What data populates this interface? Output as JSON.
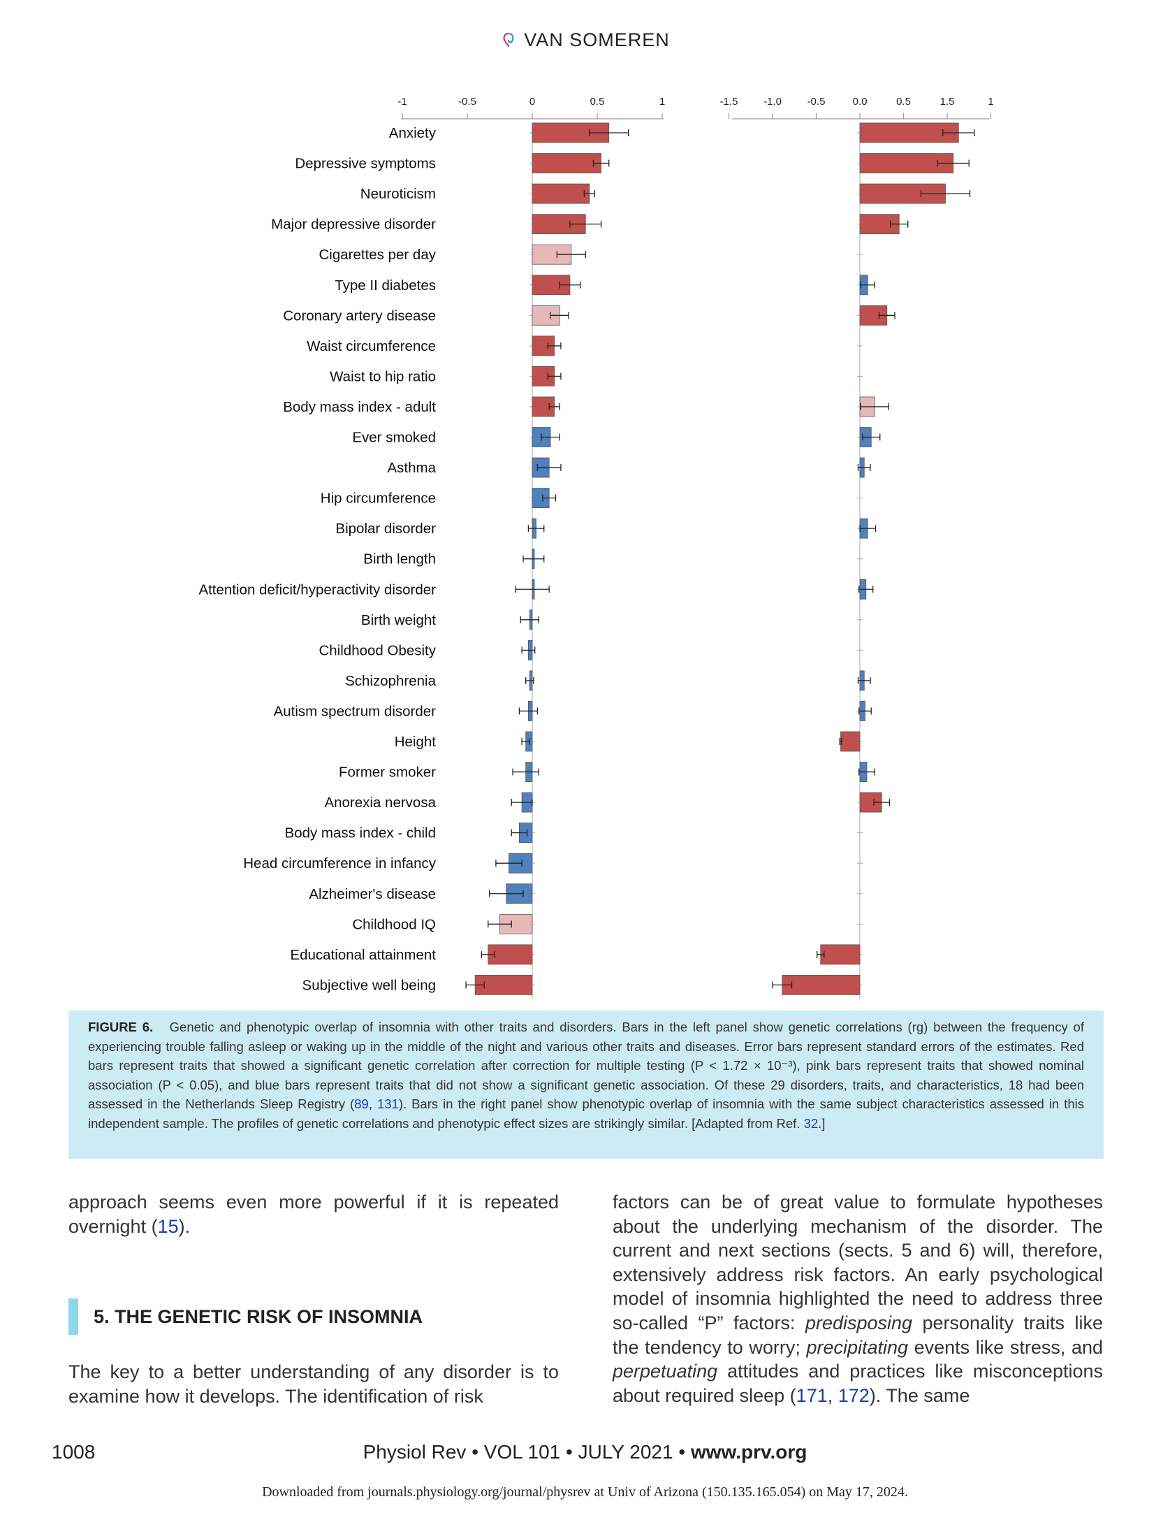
{
  "header": {
    "title": "VAN SOMEREN"
  },
  "chart_data": [
    {
      "type": "bar",
      "orientation": "horizontal",
      "panel": "left",
      "xlim": [
        -1,
        1
      ],
      "xticks": [
        "-1",
        "-0.5",
        "0",
        "0.5",
        "1"
      ],
      "categories": [
        "Anxiety",
        "Depressive symptoms",
        "Neuroticism",
        "Major depressive disorder",
        "Cigarettes per day",
        "Type II diabetes",
        "Coronary artery disease",
        "Waist circumference",
        "Waist to hip ratio",
        "Body mass index - adult",
        "Ever smoked",
        "Asthma",
        "Hip circumference",
        "Bipolar disorder",
        "Birth length",
        "Attention deficit/hyperactivity disorder",
        "Birth weight",
        "Childhood Obesity",
        "Schizophrenia",
        "Autism spectrum disorder",
        "Height",
        "Former smoker",
        "Anorexia nervosa",
        "Body mass index - child",
        "Head circumference in infancy",
        "Alzheimer's disease",
        "Childhood IQ",
        "Educational attainment",
        "Subjective well being"
      ],
      "values": [
        0.59,
        0.53,
        0.44,
        0.41,
        0.3,
        0.29,
        0.21,
        0.17,
        0.17,
        0.17,
        0.14,
        0.13,
        0.13,
        0.03,
        0.01,
        0.0,
        -0.02,
        -0.03,
        -0.02,
        -0.03,
        -0.05,
        -0.05,
        -0.08,
        -0.1,
        -0.18,
        -0.2,
        -0.25,
        -0.34,
        -0.44
      ],
      "errors": [
        0.15,
        0.06,
        0.04,
        0.12,
        0.11,
        0.08,
        0.07,
        0.05,
        0.05,
        0.04,
        0.07,
        0.09,
        0.05,
        0.06,
        0.08,
        0.13,
        0.07,
        0.05,
        0.03,
        0.07,
        0.03,
        0.1,
        0.08,
        0.06,
        0.1,
        0.13,
        0.09,
        0.05,
        0.07
      ],
      "significance": [
        "red",
        "red",
        "red",
        "red",
        "pink",
        "red",
        "pink",
        "red",
        "red",
        "red",
        "blue",
        "blue",
        "blue",
        "blue",
        "blue",
        "blue",
        "blue",
        "blue",
        "blue",
        "blue",
        "blue",
        "blue",
        "blue",
        "blue",
        "blue",
        "blue",
        "pink",
        "red",
        "red"
      ]
    },
    {
      "type": "bar",
      "orientation": "horizontal",
      "panel": "right",
      "xlim": [
        -1.5,
        1.5
      ],
      "xticks": [
        "-1.5",
        "-1.0",
        "-0.5",
        "0.0",
        "0.5",
        "1.5",
        "1"
      ],
      "categories": [
        "Anxiety",
        "Depressive symptoms",
        "Neuroticism",
        "Major depressive disorder",
        "Type II diabetes",
        "Coronary artery disease",
        "Body mass index - adult",
        "Ever smoked",
        "Asthma",
        "Bipolar disorder",
        "Attention deficit/hyperactivity disorder",
        "Schizophrenia",
        "Autism spectrum disorder",
        "Height",
        "Former smoker",
        "Anorexia nervosa",
        "Educational attainment",
        "Subjective well being"
      ],
      "row_index": [
        0,
        1,
        2,
        3,
        5,
        6,
        9,
        10,
        11,
        13,
        15,
        18,
        19,
        20,
        21,
        22,
        27,
        28
      ],
      "values": [
        1.13,
        1.07,
        0.98,
        0.45,
        0.09,
        0.31,
        0.17,
        0.13,
        0.05,
        0.09,
        0.07,
        0.05,
        0.06,
        -0.22,
        0.08,
        0.25,
        -0.45,
        -0.89
      ],
      "errors": [
        0.18,
        0.18,
        0.28,
        0.1,
        0.08,
        0.09,
        0.16,
        0.1,
        0.07,
        0.09,
        0.08,
        0.07,
        0.07,
        0.01,
        0.09,
        0.09,
        0.04,
        0.11
      ],
      "significance": [
        "red",
        "red",
        "red",
        "red",
        "blue",
        "red",
        "pink",
        "blue",
        "blue",
        "blue",
        "blue",
        "blue",
        "blue",
        "red",
        "blue",
        "red",
        "red",
        "red"
      ]
    }
  ],
  "colors": {
    "red": "#c0504d",
    "pink": "#e6b8b7",
    "blue": "#4f81bd"
  },
  "caption": {
    "label": "FIGURE 6.",
    "text_1": "Genetic and phenotypic overlap of insomnia with other traits and disorders. Bars in the left panel show genetic correlations (rg) between the frequency of experiencing trouble falling asleep or waking up in the middle of the night and various other traits and diseases. Error bars represent standard errors of the estimates. Red bars represent traits that showed a significant genetic correlation after correction for multiple testing (P < 1.72 × 10⁻³), pink bars represent traits that showed nominal association (P < 0.05), and blue bars represent traits that did not show a significant genetic association. Of these 29 disorders, traits, and characteristics, 18 had been assessed in the Netherlands Sleep Registry (",
    "ref_1": "89",
    "sep": ", ",
    "ref_2": "131",
    "text_2": "). Bars in the right panel show phenotypic overlap of insomnia with the same subject characteristics assessed in this independent sample. The profiles of genetic correlations and phenotypic effect sizes are strikingly similar. [Adapted from Ref. ",
    "ref_3": "32",
    "text_3": ".]"
  },
  "body": {
    "left_top": "approach seems even more powerful if it is repeated overnight (",
    "left_top_ref": "15",
    "left_top_end": ").",
    "section_heading": "5.  THE GENETIC RISK OF INSOMNIA",
    "left_bottom": "The key to a better understanding of any disorder is to examine how it develops. The identification of risk",
    "right_1": "factors can be of great value to formulate hypotheses about the underlying mechanism of the disorder. The current and next sections (sects. 5 and 6) will, therefore, extensively address risk factors. An early psychological model of insomnia highlighted the need to address three so-called “P” factors: ",
    "right_em1": "predisposing",
    "right_2": " personality traits like the tendency to worry; ",
    "right_em2": "precipitating",
    "right_3": " events like stress, and ",
    "right_em3": "perpetuating",
    "right_4": " attitudes and practices like misconceptions about required sleep (",
    "right_ref1": "171",
    "right_sep": ", ",
    "right_ref2": "172",
    "right_5": "). The same"
  },
  "footer": {
    "page": "1008",
    "journal": "Physiol Rev • VOL 101 • JULY 2021 • ",
    "site": "www.prv.org",
    "download": "Downloaded from journals.physiology.org/journal/physrev at Univ of Arizona (150.135.165.054) on May 17, 2024."
  }
}
